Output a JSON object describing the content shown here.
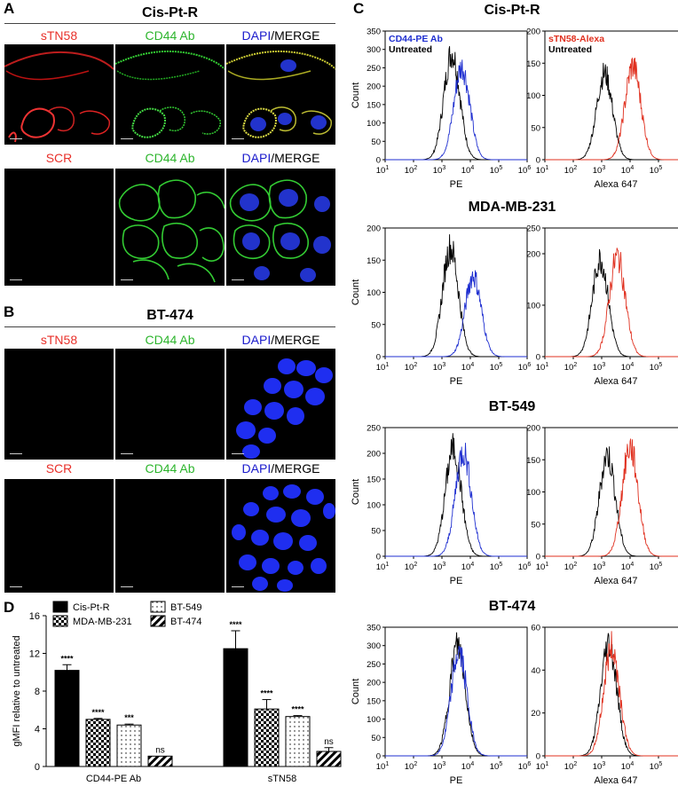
{
  "panelA": {
    "letter": "A",
    "title": "Cis-Pt-R",
    "row1": [
      {
        "label": "sTN58",
        "color": "#e8302a"
      },
      {
        "label": "CD44 Ab",
        "color": "#2db52d"
      },
      {
        "label_a": "DAPI",
        "label_b": "/MERGE",
        "color": "#1a1acc"
      }
    ],
    "row2": [
      {
        "label": "SCR",
        "color": "#e8302a"
      },
      {
        "label": "CD44 Ab",
        "color": "#2db52d"
      },
      {
        "label_a": "DAPI",
        "label_b": "/MERGE",
        "color": "#1a1acc"
      }
    ]
  },
  "panelB": {
    "letter": "B",
    "title": "BT-474",
    "row1": [
      {
        "label": "sTN58",
        "color": "#e8302a"
      },
      {
        "label": "CD44 Ab",
        "color": "#2db52d"
      },
      {
        "label_a": "DAPI",
        "label_b": "/MERGE",
        "color": "#1a1acc"
      }
    ],
    "row2": [
      {
        "label": "SCR",
        "color": "#e8302a"
      },
      {
        "label": "CD44 Ab",
        "color": "#2db52d"
      },
      {
        "label_a": "DAPI",
        "label_b": "/MERGE",
        "color": "#1a1acc"
      }
    ]
  },
  "panelC": {
    "letter": "C",
    "rows": [
      {
        "title": "Cis-Pt-R",
        "left": {
          "ymax": 350,
          "yticks": [
            0,
            50,
            100,
            150,
            200,
            250,
            300,
            350
          ],
          "legend": [
            "CD44-PE Ab",
            "Untreated"
          ],
          "treated_peak": 3.7,
          "treated_height": 260,
          "untreated_peak": 3.35,
          "untreated_height": 300
        },
        "right": {
          "ymax": 200,
          "yticks": [
            0,
            50,
            100,
            150,
            200
          ],
          "legend": [
            "sTN58-Alexa",
            "Untreated"
          ],
          "treated_peak": 4.1,
          "treated_height": 150,
          "untreated_peak": 3.1,
          "untreated_height": 138
        }
      },
      {
        "title": "MDA-MB-231",
        "left": {
          "ymax": 200,
          "yticks": [
            0,
            50,
            100,
            150,
            200
          ],
          "legend": [],
          "treated_peak": 4.1,
          "treated_height": 130,
          "untreated_peak": 3.3,
          "untreated_height": 175
        },
        "right": {
          "ymax": 250,
          "yticks": [
            0,
            100,
            200,
            250
          ],
          "legend": [],
          "treated_peak": 3.55,
          "treated_height": 200,
          "untreated_peak": 2.95,
          "untreated_height": 195
        }
      },
      {
        "title": "BT-549",
        "left": {
          "ymax": 250,
          "yticks": [
            0,
            50,
            100,
            150,
            200,
            250
          ],
          "legend": [],
          "treated_peak": 3.75,
          "treated_height": 210,
          "untreated_peak": 3.4,
          "untreated_height": 215
        },
        "right": {
          "ymax": 200,
          "yticks": [
            0,
            50,
            100,
            150,
            200
          ],
          "legend": [],
          "treated_peak": 4.0,
          "treated_height": 175,
          "untreated_peak": 3.2,
          "untreated_height": 162
        }
      },
      {
        "title": "BT-474",
        "left": {
          "ymax": 350,
          "yticks": [
            0,
            50,
            100,
            150,
            200,
            250,
            300,
            350
          ],
          "legend": [],
          "treated_peak": 3.6,
          "treated_height": 290,
          "untreated_peak": 3.55,
          "untreated_height": 310
        },
        "right": {
          "ymax": 60,
          "yticks": [
            0,
            20,
            40,
            60
          ],
          "legend": [],
          "treated_peak": 3.35,
          "treated_height": 52,
          "untreated_peak": 3.25,
          "untreated_height": 54
        }
      }
    ],
    "ylabel": "Count",
    "left_xlabel": "PE",
    "right_xlabel": "Alexa 647",
    "xticks": [
      "1",
      "2",
      "3",
      "4",
      "5",
      "6"
    ],
    "tick_base": "10",
    "treated_left_color": "#1f2fd0",
    "treated_right_color": "#e0301f",
    "untreated_color": "#000000"
  },
  "panelD": {
    "letter": "D",
    "chart_data": {
      "type": "bar",
      "ylabel": "gMFI relative to untreated",
      "ylim": [
        0,
        16
      ],
      "yticks": [
        0,
        4,
        8,
        12,
        16
      ],
      "categories": [
        "CD44-PE Ab",
        "sTN58"
      ],
      "series": [
        {
          "name": "Cis-Pt-R",
          "values": [
            10.2,
            12.5
          ],
          "errors": [
            0.6,
            1.9
          ],
          "sig": [
            "****",
            "****"
          ],
          "pattern": "solid"
        },
        {
          "name": "MDA-MB-231",
          "values": [
            5.0,
            6.1
          ],
          "errors": [
            0.1,
            1.0
          ],
          "sig": [
            "****",
            "****"
          ],
          "pattern": "checker"
        },
        {
          "name": "BT-549",
          "values": [
            4.4,
            5.3
          ],
          "errors": [
            0.1,
            0.1
          ],
          "sig": [
            "***",
            "****"
          ],
          "pattern": "dots"
        },
        {
          "name": "BT-474",
          "values": [
            1.1,
            1.6
          ],
          "errors": [
            0.0,
            0.4
          ],
          "sig": [
            "ns",
            "ns"
          ],
          "pattern": "hatch"
        }
      ],
      "legend_placement": "top"
    }
  }
}
